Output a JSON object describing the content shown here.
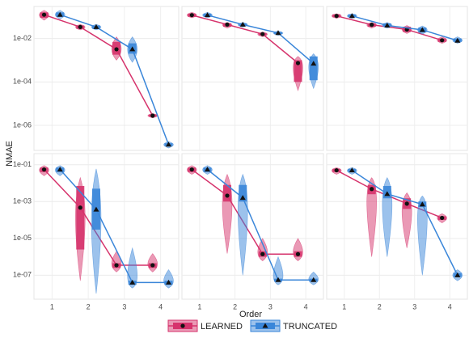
{
  "y_label": "NMAE",
  "x_label": "Order",
  "chart_data": [
    {
      "type": "violin",
      "log_y": true,
      "grid": true,
      "categories": [
        "1",
        "2",
        "3",
        "4"
      ],
      "ylim": [
        7e-08,
        0.3
      ],
      "yticks": [
        {
          "value": 0.01,
          "label": "1e-02"
        },
        {
          "value": 0.0001,
          "label": "1e-04"
        },
        {
          "value": 1e-06,
          "label": "1e-06"
        }
      ],
      "series": [
        {
          "name": "LEARNED",
          "color": "#d6336c",
          "marker": "circle",
          "values": [
            0.125,
            0.034,
            0.0032,
            2.8e-06
          ],
          "q1": [
            0.09,
            0.028,
            0.0018,
            2.5e-06
          ],
          "q3": [
            0.16,
            0.04,
            0.007,
            3.2e-06
          ],
          "min": [
            0.07,
            0.025,
            0.001,
            2.2e-06
          ],
          "max": [
            0.2,
            0.045,
            0.012,
            3.5e-06
          ]
        },
        {
          "name": "TRUNCATED",
          "color": "#3a86d9",
          "marker": "triangle",
          "values": [
            0.125,
            0.034,
            0.0032,
            1.3e-07
          ],
          "q1": [
            0.1,
            0.028,
            0.002,
            1.1e-07
          ],
          "q3": [
            0.16,
            0.04,
            0.006,
            1.5e-07
          ],
          "min": [
            0.08,
            0.025,
            0.0008,
            9e-08
          ],
          "max": [
            0.2,
            0.045,
            0.012,
            1.8e-07
          ]
        }
      ]
    },
    {
      "type": "violin",
      "log_y": true,
      "grid": true,
      "categories": [
        "1",
        "2",
        "3",
        "4"
      ],
      "ylim": [
        7e-08,
        0.3
      ],
      "yticks": [
        {
          "value": 0.01,
          "label": "1e-02"
        },
        {
          "value": 0.0001,
          "label": "1e-04"
        },
        {
          "value": 1e-06,
          "label": "1e-06"
        }
      ],
      "series": [
        {
          "name": "LEARNED",
          "color": "#d6336c",
          "marker": "circle",
          "values": [
            0.12,
            0.044,
            0.016,
            0.00074
          ],
          "q1": [
            0.1,
            0.035,
            0.014,
            0.0001
          ],
          "q3": [
            0.14,
            0.05,
            0.018,
            0.001
          ],
          "min": [
            0.09,
            0.03,
            0.012,
            4e-05
          ],
          "max": [
            0.16,
            0.055,
            0.02,
            0.0015
          ]
        },
        {
          "name": "TRUNCATED",
          "color": "#3a86d9",
          "marker": "triangle",
          "values": [
            0.12,
            0.044,
            0.018,
            0.0007
          ],
          "q1": [
            0.1,
            0.038,
            0.016,
            0.00012
          ],
          "q3": [
            0.14,
            0.05,
            0.02,
            0.0015
          ],
          "min": [
            0.09,
            0.033,
            0.014,
            5e-05
          ],
          "max": [
            0.16,
            0.055,
            0.022,
            0.002
          ]
        }
      ]
    },
    {
      "type": "violin",
      "log_y": true,
      "grid": true,
      "categories": [
        "1",
        "2",
        "3",
        "4"
      ],
      "ylim": [
        7e-08,
        0.3
      ],
      "yticks": [
        {
          "value": 0.01,
          "label": "1e-02"
        },
        {
          "value": 0.0001,
          "label": "1e-04"
        },
        {
          "value": 1e-06,
          "label": "1e-06"
        }
      ],
      "series": [
        {
          "name": "LEARNED",
          "color": "#d6336c",
          "marker": "circle",
          "values": [
            0.11,
            0.043,
            0.026,
            0.0083
          ],
          "q1": [
            0.095,
            0.035,
            0.02,
            0.007
          ],
          "q3": [
            0.13,
            0.05,
            0.035,
            0.01
          ],
          "min": [
            0.085,
            0.03,
            0.017,
            0.006
          ],
          "max": [
            0.14,
            0.055,
            0.04,
            0.012
          ]
        },
        {
          "name": "TRUNCATED",
          "color": "#3a86d9",
          "marker": "triangle",
          "values": [
            0.11,
            0.04,
            0.025,
            0.008
          ],
          "q1": [
            0.095,
            0.035,
            0.019,
            0.007
          ],
          "q3": [
            0.13,
            0.05,
            0.032,
            0.01
          ],
          "min": [
            0.085,
            0.03,
            0.016,
            0.006
          ],
          "max": [
            0.14,
            0.055,
            0.038,
            0.012
          ]
        }
      ]
    },
    {
      "type": "violin",
      "log_y": true,
      "grid": true,
      "categories": [
        "1",
        "2",
        "3",
        "4"
      ],
      "ylim": [
        5e-09,
        0.4
      ],
      "yticks": [
        {
          "value": 0.1,
          "label": "1e-01"
        },
        {
          "value": 0.001,
          "label": "1e-03"
        },
        {
          "value": 1e-05,
          "label": "1e-05"
        },
        {
          "value": 1e-07,
          "label": "1e-07"
        }
      ],
      "series": [
        {
          "name": "LEARNED",
          "color": "#d6336c",
          "marker": "circle",
          "values": [
            0.055,
            0.00047,
            3.5e-07,
            3.5e-07
          ],
          "q1": [
            0.04,
            2.5e-06,
            2.5e-07,
            2.5e-07
          ],
          "q3": [
            0.07,
            0.007,
            4.5e-07,
            4.5e-07
          ],
          "min": [
            0.025,
            5e-08,
            1.5e-07,
            1.5e-07
          ],
          "max": [
            0.09,
            0.02,
            2e-06,
            1.5e-06
          ]
        },
        {
          "name": "TRUNCATED",
          "color": "#3a86d9",
          "marker": "triangle",
          "values": [
            0.055,
            0.00037,
            4e-08,
            4e-08
          ],
          "q1": [
            0.04,
            3e-05,
            3e-08,
            3e-08
          ],
          "q3": [
            0.07,
            0.005,
            5e-08,
            5e-08
          ],
          "min": [
            0.025,
            1e-08,
            2e-08,
            2e-08
          ],
          "max": [
            0.09,
            0.06,
            3e-06,
            2e-07
          ]
        }
      ]
    },
    {
      "type": "violin",
      "log_y": true,
      "grid": true,
      "categories": [
        "1",
        "2",
        "3",
        "4"
      ],
      "ylim": [
        5e-09,
        0.4
      ],
      "yticks": [
        {
          "value": 0.1,
          "label": "1e-01"
        },
        {
          "value": 0.001,
          "label": "1e-03"
        },
        {
          "value": 1e-05,
          "label": "1e-05"
        },
        {
          "value": 1e-07,
          "label": "1e-07"
        }
      ],
      "series": [
        {
          "name": "LEARNED",
          "color": "#d6336c",
          "marker": "circle",
          "values": [
            0.055,
            0.0021,
            1.4e-06,
            1.4e-06
          ],
          "q1": [
            0.04,
            0.001,
            1e-06,
            1e-06
          ],
          "q3": [
            0.07,
            0.008,
            2e-06,
            2e-06
          ],
          "min": [
            0.03,
            1.5e-06,
            6e-07,
            6e-07
          ],
          "max": [
            0.09,
            0.03,
            1e-05,
            1e-05
          ]
        },
        {
          "name": "TRUNCATED",
          "color": "#3a86d9",
          "marker": "triangle",
          "values": [
            0.055,
            0.0016,
            5.5e-08,
            5.5e-08
          ],
          "q1": [
            0.04,
            0.001,
            4.5e-08,
            4.5e-08
          ],
          "q3": [
            0.07,
            0.008,
            6.5e-08,
            6.5e-08
          ],
          "min": [
            0.03,
            1e-07,
            3e-08,
            3e-08
          ],
          "max": [
            0.09,
            0.03,
            1e-06,
            1.5e-07
          ]
        }
      ]
    },
    {
      "type": "violin",
      "log_y": true,
      "grid": true,
      "categories": [
        "1",
        "2",
        "3",
        "4"
      ],
      "ylim": [
        5e-09,
        0.4
      ],
      "yticks": [
        {
          "value": 0.1,
          "label": "1e-01"
        },
        {
          "value": 0.001,
          "label": "1e-03"
        },
        {
          "value": 1e-05,
          "label": "1e-05"
        },
        {
          "value": 1e-07,
          "label": "1e-07"
        }
      ],
      "series": [
        {
          "name": "LEARNED",
          "color": "#d6336c",
          "marker": "circle",
          "values": [
            0.05,
            0.0048,
            0.00077,
            0.00013
          ],
          "q1": [
            0.04,
            0.0025,
            0.0004,
            0.0001
          ],
          "q3": [
            0.06,
            0.008,
            0.0015,
            0.00016
          ],
          "min": [
            0.03,
            1e-06,
            3e-06,
            7e-05
          ],
          "max": [
            0.07,
            0.02,
            0.003,
            0.00022
          ]
        },
        {
          "name": "TRUNCATED",
          "color": "#3a86d9",
          "marker": "triangle",
          "values": [
            0.05,
            0.0026,
            0.0007,
            1e-07
          ],
          "q1": [
            0.04,
            0.0015,
            0.0005,
            8e-08
          ],
          "q3": [
            0.06,
            0.007,
            0.001,
            1.3e-07
          ],
          "min": [
            0.03,
            1e-06,
            1e-07,
            5e-08
          ],
          "max": [
            0.07,
            0.02,
            0.002,
            2e-07
          ]
        }
      ]
    }
  ]
}
